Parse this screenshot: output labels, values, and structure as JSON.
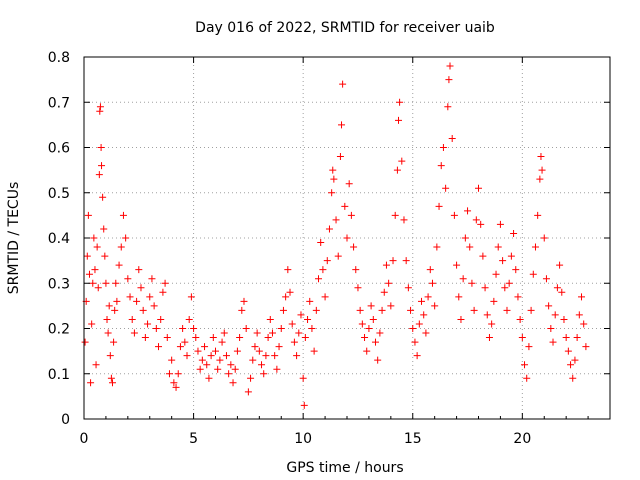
{
  "chart_data": {
    "type": "scatter",
    "title": "Day 016 of 2022, SRMTID for receiver uaib",
    "xlabel": "GPS time / hours",
    "ylabel": "SRMTID / TECUs",
    "xlim": [
      0,
      24
    ],
    "ylim": [
      0,
      0.8
    ],
    "xticks": [
      0,
      5,
      10,
      15,
      20
    ],
    "xtick_labels": [
      "0",
      "5",
      "10",
      "15",
      "20"
    ],
    "yticks": [
      0,
      0.1,
      0.2,
      0.3,
      0.4,
      0.5,
      0.6,
      0.7,
      0.8
    ],
    "ytick_labels": [
      "0",
      "0.1",
      "0.2",
      "0.3",
      "0.4",
      "0.5",
      "0.6",
      "0.7",
      "0.8"
    ],
    "grid": true,
    "marker": "+",
    "color": "#ff0000",
    "series": [
      {
        "name": "SRMTID",
        "points": [
          [
            0.05,
            0.17
          ],
          [
            0.1,
            0.26
          ],
          [
            0.15,
            0.36
          ],
          [
            0.2,
            0.45
          ],
          [
            0.25,
            0.32
          ],
          [
            0.3,
            0.08
          ],
          [
            0.35,
            0.21
          ],
          [
            0.4,
            0.3
          ],
          [
            0.45,
            0.4
          ],
          [
            0.5,
            0.33
          ],
          [
            0.55,
            0.12
          ],
          [
            0.6,
            0.38
          ],
          [
            0.65,
            0.29
          ],
          [
            0.7,
            0.54
          ],
          [
            0.72,
            0.68
          ],
          [
            0.75,
            0.69
          ],
          [
            0.78,
            0.6
          ],
          [
            0.8,
            0.56
          ],
          [
            0.85,
            0.49
          ],
          [
            0.9,
            0.42
          ],
          [
            0.95,
            0.36
          ],
          [
            1.0,
            0.3
          ],
          [
            1.05,
            0.22
          ],
          [
            1.1,
            0.19
          ],
          [
            1.15,
            0.25
          ],
          [
            1.2,
            0.14
          ],
          [
            1.25,
            0.09
          ],
          [
            1.3,
            0.08
          ],
          [
            1.35,
            0.17
          ],
          [
            1.4,
            0.24
          ],
          [
            1.45,
            0.3
          ],
          [
            1.5,
            0.26
          ],
          [
            1.6,
            0.34
          ],
          [
            1.7,
            0.38
          ],
          [
            1.8,
            0.45
          ],
          [
            1.9,
            0.4
          ],
          [
            2.0,
            0.31
          ],
          [
            2.1,
            0.27
          ],
          [
            2.2,
            0.22
          ],
          [
            2.3,
            0.19
          ],
          [
            2.4,
            0.26
          ],
          [
            2.5,
            0.33
          ],
          [
            2.6,
            0.29
          ],
          [
            2.7,
            0.24
          ],
          [
            2.8,
            0.18
          ],
          [
            2.9,
            0.21
          ],
          [
            3.0,
            0.27
          ],
          [
            3.1,
            0.31
          ],
          [
            3.2,
            0.25
          ],
          [
            3.3,
            0.2
          ],
          [
            3.4,
            0.16
          ],
          [
            3.5,
            0.22
          ],
          [
            3.6,
            0.28
          ],
          [
            3.7,
            0.3
          ],
          [
            3.8,
            0.18
          ],
          [
            3.9,
            0.1
          ],
          [
            4.0,
            0.13
          ],
          [
            4.1,
            0.08
          ],
          [
            4.2,
            0.07
          ],
          [
            4.3,
            0.1
          ],
          [
            4.4,
            0.16
          ],
          [
            4.5,
            0.2
          ],
          [
            4.6,
            0.17
          ],
          [
            4.7,
            0.14
          ],
          [
            4.8,
            0.22
          ],
          [
            4.9,
            0.27
          ],
          [
            5.0,
            0.2
          ],
          [
            5.1,
            0.18
          ],
          [
            5.2,
            0.15
          ],
          [
            5.3,
            0.11
          ],
          [
            5.4,
            0.13
          ],
          [
            5.5,
            0.16
          ],
          [
            5.6,
            0.12
          ],
          [
            5.7,
            0.09
          ],
          [
            5.8,
            0.14
          ],
          [
            5.9,
            0.18
          ],
          [
            6.0,
            0.15
          ],
          [
            6.1,
            0.11
          ],
          [
            6.2,
            0.13
          ],
          [
            6.3,
            0.17
          ],
          [
            6.4,
            0.19
          ],
          [
            6.5,
            0.14
          ],
          [
            6.6,
            0.1
          ],
          [
            6.7,
            0.12
          ],
          [
            6.8,
            0.08
          ],
          [
            6.9,
            0.11
          ],
          [
            7.0,
            0.15
          ],
          [
            7.1,
            0.18
          ],
          [
            7.2,
            0.24
          ],
          [
            7.3,
            0.26
          ],
          [
            7.4,
            0.2
          ],
          [
            7.5,
            0.06
          ],
          [
            7.6,
            0.09
          ],
          [
            7.7,
            0.13
          ],
          [
            7.8,
            0.16
          ],
          [
            7.9,
            0.19
          ],
          [
            8.0,
            0.15
          ],
          [
            8.1,
            0.12
          ],
          [
            8.2,
            0.1
          ],
          [
            8.3,
            0.14
          ],
          [
            8.4,
            0.18
          ],
          [
            8.5,
            0.22
          ],
          [
            8.6,
            0.19
          ],
          [
            8.7,
            0.14
          ],
          [
            8.8,
            0.11
          ],
          [
            8.9,
            0.16
          ],
          [
            9.0,
            0.2
          ],
          [
            9.1,
            0.24
          ],
          [
            9.2,
            0.27
          ],
          [
            9.3,
            0.33
          ],
          [
            9.4,
            0.28
          ],
          [
            9.5,
            0.21
          ],
          [
            9.6,
            0.17
          ],
          [
            9.7,
            0.14
          ],
          [
            9.8,
            0.19
          ],
          [
            9.9,
            0.23
          ],
          [
            10.0,
            0.09
          ],
          [
            10.05,
            0.03
          ],
          [
            10.1,
            0.18
          ],
          [
            10.2,
            0.22
          ],
          [
            10.3,
            0.26
          ],
          [
            10.4,
            0.2
          ],
          [
            10.5,
            0.15
          ],
          [
            10.6,
            0.24
          ],
          [
            10.7,
            0.31
          ],
          [
            10.8,
            0.39
          ],
          [
            10.9,
            0.33
          ],
          [
            11.0,
            0.27
          ],
          [
            11.1,
            0.35
          ],
          [
            11.2,
            0.42
          ],
          [
            11.3,
            0.5
          ],
          [
            11.35,
            0.55
          ],
          [
            11.4,
            0.53
          ],
          [
            11.5,
            0.44
          ],
          [
            11.6,
            0.36
          ],
          [
            11.7,
            0.58
          ],
          [
            11.75,
            0.65
          ],
          [
            11.8,
            0.74
          ],
          [
            11.9,
            0.47
          ],
          [
            12.0,
            0.4
          ],
          [
            12.1,
            0.52
          ],
          [
            12.2,
            0.45
          ],
          [
            12.3,
            0.38
          ],
          [
            12.4,
            0.33
          ],
          [
            12.5,
            0.29
          ],
          [
            12.6,
            0.24
          ],
          [
            12.7,
            0.21
          ],
          [
            12.8,
            0.18
          ],
          [
            12.9,
            0.15
          ],
          [
            13.0,
            0.2
          ],
          [
            13.1,
            0.25
          ],
          [
            13.2,
            0.22
          ],
          [
            13.3,
            0.17
          ],
          [
            13.4,
            0.13
          ],
          [
            13.5,
            0.19
          ],
          [
            13.6,
            0.24
          ],
          [
            13.7,
            0.28
          ],
          [
            13.8,
            0.34
          ],
          [
            13.9,
            0.3
          ],
          [
            14.0,
            0.25
          ],
          [
            14.1,
            0.35
          ],
          [
            14.2,
            0.45
          ],
          [
            14.3,
            0.55
          ],
          [
            14.35,
            0.66
          ],
          [
            14.4,
            0.7
          ],
          [
            14.5,
            0.57
          ],
          [
            14.6,
            0.44
          ],
          [
            14.7,
            0.35
          ],
          [
            14.8,
            0.29
          ],
          [
            14.9,
            0.24
          ],
          [
            15.0,
            0.2
          ],
          [
            15.1,
            0.17
          ],
          [
            15.2,
            0.14
          ],
          [
            15.3,
            0.21
          ],
          [
            15.4,
            0.26
          ],
          [
            15.5,
            0.23
          ],
          [
            15.6,
            0.19
          ],
          [
            15.7,
            0.27
          ],
          [
            15.8,
            0.33
          ],
          [
            15.9,
            0.3
          ],
          [
            16.0,
            0.25
          ],
          [
            16.1,
            0.38
          ],
          [
            16.2,
            0.47
          ],
          [
            16.3,
            0.56
          ],
          [
            16.4,
            0.6
          ],
          [
            16.5,
            0.51
          ],
          [
            16.6,
            0.69
          ],
          [
            16.65,
            0.75
          ],
          [
            16.7,
            0.78
          ],
          [
            16.8,
            0.62
          ],
          [
            16.9,
            0.45
          ],
          [
            17.0,
            0.34
          ],
          [
            17.1,
            0.27
          ],
          [
            17.2,
            0.22
          ],
          [
            17.3,
            0.31
          ],
          [
            17.4,
            0.4
          ],
          [
            17.5,
            0.46
          ],
          [
            17.6,
            0.38
          ],
          [
            17.7,
            0.3
          ],
          [
            17.8,
            0.24
          ],
          [
            17.9,
            0.44
          ],
          [
            18.0,
            0.51
          ],
          [
            18.1,
            0.43
          ],
          [
            18.2,
            0.36
          ],
          [
            18.3,
            0.29
          ],
          [
            18.4,
            0.23
          ],
          [
            18.5,
            0.18
          ],
          [
            18.6,
            0.21
          ],
          [
            18.7,
            0.26
          ],
          [
            18.8,
            0.32
          ],
          [
            18.9,
            0.38
          ],
          [
            19.0,
            0.43
          ],
          [
            19.1,
            0.35
          ],
          [
            19.2,
            0.29
          ],
          [
            19.3,
            0.24
          ],
          [
            19.4,
            0.3
          ],
          [
            19.5,
            0.36
          ],
          [
            19.6,
            0.41
          ],
          [
            19.7,
            0.33
          ],
          [
            19.8,
            0.27
          ],
          [
            19.9,
            0.22
          ],
          [
            20.0,
            0.18
          ],
          [
            20.1,
            0.12
          ],
          [
            20.2,
            0.09
          ],
          [
            20.3,
            0.16
          ],
          [
            20.4,
            0.24
          ],
          [
            20.5,
            0.32
          ],
          [
            20.6,
            0.38
          ],
          [
            20.7,
            0.45
          ],
          [
            20.8,
            0.53
          ],
          [
            20.85,
            0.58
          ],
          [
            20.9,
            0.55
          ],
          [
            21.0,
            0.4
          ],
          [
            21.1,
            0.31
          ],
          [
            21.2,
            0.25
          ],
          [
            21.3,
            0.2
          ],
          [
            21.4,
            0.17
          ],
          [
            21.5,
            0.23
          ],
          [
            21.6,
            0.29
          ],
          [
            21.7,
            0.34
          ],
          [
            21.8,
            0.28
          ],
          [
            21.9,
            0.22
          ],
          [
            22.0,
            0.18
          ],
          [
            22.1,
            0.15
          ],
          [
            22.2,
            0.12
          ],
          [
            22.3,
            0.09
          ],
          [
            22.4,
            0.13
          ],
          [
            22.5,
            0.18
          ],
          [
            22.6,
            0.23
          ],
          [
            22.7,
            0.27
          ],
          [
            22.8,
            0.21
          ],
          [
            22.9,
            0.16
          ]
        ]
      }
    ]
  }
}
